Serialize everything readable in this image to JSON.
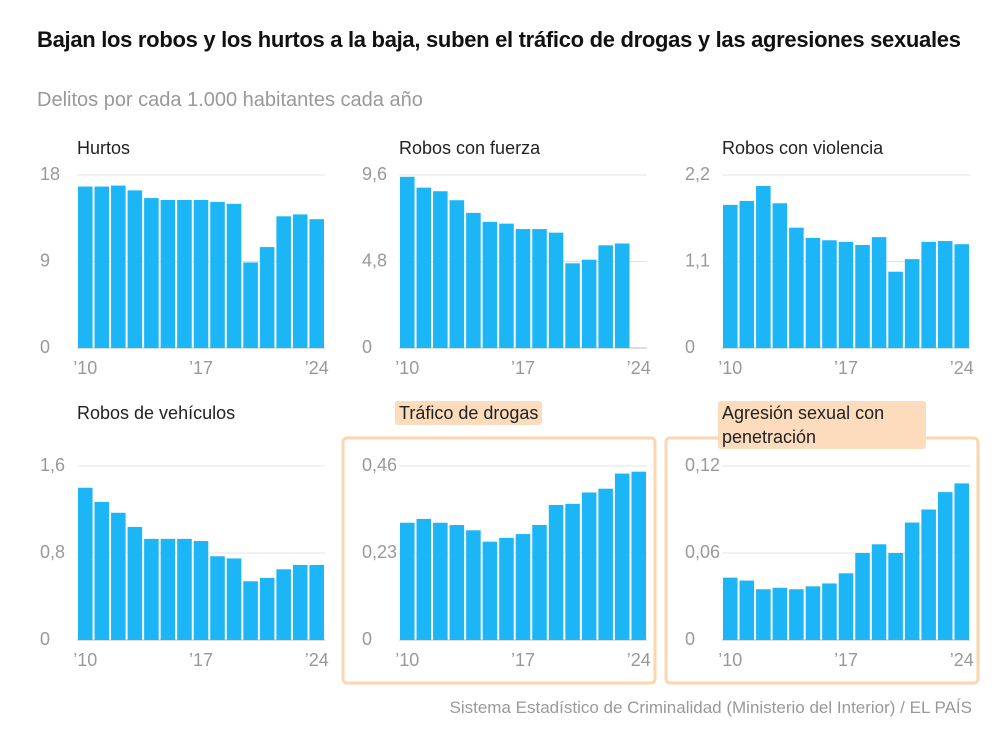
{
  "title": "Bajan los robos y los hurtos a la baja, suben el tráfico de drogas y las agresiones sexuales",
  "subtitle": "Delitos por cada 1.000 habitantes cada año",
  "source": "Sistema Estadístico de Criminalidad (Ministerio del Interior) / EL PAÍS",
  "chart_data": [
    {
      "type": "bar",
      "title": "Hurtos",
      "color": "#1cb5f5",
      "grid": true,
      "highlight": false,
      "categories": [
        "’10",
        null,
        null,
        null,
        null,
        null,
        null,
        "’17",
        null,
        null,
        null,
        null,
        null,
        null,
        "’24"
      ],
      "values": [
        16.8,
        16.8,
        16.9,
        16.4,
        15.6,
        15.4,
        15.4,
        15.4,
        15.2,
        15.0,
        8.9,
        10.5,
        13.7,
        13.9,
        13.4
      ],
      "ylim": [
        0,
        18
      ],
      "yticks": [
        0,
        9,
        18
      ]
    },
    {
      "type": "bar",
      "title": "Robos con fuerza",
      "color": "#1cb5f5",
      "grid": true,
      "highlight": false,
      "categories": [
        "’10",
        null,
        null,
        null,
        null,
        null,
        null,
        "’17",
        null,
        null,
        null,
        null,
        null,
        null,
        "’24"
      ],
      "values": [
        9.5,
        8.9,
        8.7,
        8.2,
        7.5,
        7.0,
        6.9,
        6.6,
        6.6,
        6.4,
        4.7,
        4.9,
        5.7,
        5.8,
        null
      ],
      "ylim": [
        0,
        9.6
      ],
      "yticks": [
        0,
        {
          "value": 4.8,
          "label": "4,8"
        },
        {
          "value": 9.6,
          "label": "9,6"
        }
      ]
    },
    {
      "type": "bar",
      "title": "Robos con violencia",
      "color": "#1cb5f5",
      "grid": true,
      "highlight": false,
      "categories": [
        "’10",
        null,
        null,
        null,
        null,
        null,
        null,
        "’17",
        null,
        null,
        null,
        null,
        null,
        null,
        "’24"
      ],
      "values": [
        1.82,
        1.87,
        2.06,
        1.84,
        1.53,
        1.4,
        1.37,
        1.35,
        1.31,
        1.41,
        0.97,
        1.13,
        1.35,
        1.36,
        1.32
      ],
      "ylim": [
        0,
        2.2
      ],
      "yticks": [
        0,
        {
          "value": 1.1,
          "label": "1,1"
        },
        {
          "value": 2.2,
          "label": "2,2"
        }
      ]
    },
    {
      "type": "bar",
      "title": "Robos de vehículos",
      "color": "#1cb5f5",
      "grid": true,
      "highlight": false,
      "categories": [
        "’10",
        null,
        null,
        null,
        null,
        null,
        null,
        "’17",
        null,
        null,
        null,
        null,
        null,
        null,
        "’24"
      ],
      "values": [
        1.4,
        1.27,
        1.17,
        1.04,
        0.93,
        0.93,
        0.93,
        0.91,
        0.77,
        0.75,
        0.54,
        0.57,
        0.65,
        0.69,
        0.69
      ],
      "ylim": [
        0,
        1.6
      ],
      "yticks": [
        0,
        {
          "value": 0.8,
          "label": "0,8"
        },
        {
          "value": 1.6,
          "label": "1,6"
        }
      ]
    },
    {
      "type": "bar",
      "title": "Tráfico de drogas",
      "color": "#1cb5f5",
      "grid": true,
      "highlight": true,
      "categories": [
        "’10",
        null,
        null,
        null,
        null,
        null,
        null,
        "’17",
        null,
        null,
        null,
        null,
        null,
        null,
        "’24"
      ],
      "values": [
        0.31,
        0.32,
        0.31,
        0.304,
        0.29,
        0.26,
        0.27,
        0.28,
        0.304,
        0.357,
        0.36,
        0.39,
        0.4,
        0.44,
        0.445
      ],
      "ylim": [
        0,
        0.46
      ],
      "yticks": [
        0,
        {
          "value": 0.23,
          "label": "0,23"
        },
        {
          "value": 0.46,
          "label": "0,46"
        }
      ]
    },
    {
      "type": "bar",
      "title": "Agresión sexual con penetración",
      "color": "#1cb5f5",
      "grid": true,
      "highlight": true,
      "categories": [
        "’10",
        null,
        null,
        null,
        null,
        null,
        null,
        "’17",
        null,
        null,
        null,
        null,
        null,
        null,
        "’24"
      ],
      "values": [
        0.043,
        0.041,
        0.035,
        0.036,
        0.035,
        0.037,
        0.039,
        0.046,
        0.06,
        0.066,
        0.06,
        0.081,
        0.09,
        0.102,
        0.108
      ],
      "ylim": [
        0,
        0.12
      ],
      "yticks": [
        0,
        {
          "value": 0.06,
          "label": "0,06"
        },
        {
          "value": 0.12,
          "label": "0,12"
        }
      ]
    }
  ]
}
